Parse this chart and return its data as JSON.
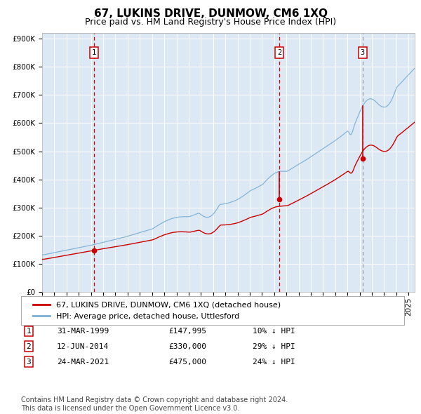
{
  "title": "67, LUKINS DRIVE, DUNMOW, CM6 1XQ",
  "subtitle": "Price paid vs. HM Land Registry's House Price Index (HPI)",
  "ylabel_ticks": [
    "£0",
    "£100K",
    "£200K",
    "£300K",
    "£400K",
    "£500K",
    "£600K",
    "£700K",
    "£800K",
    "£900K"
  ],
  "ytick_values": [
    0,
    100000,
    200000,
    300000,
    400000,
    500000,
    600000,
    700000,
    800000,
    900000
  ],
  "ylim": [
    0,
    920000
  ],
  "xlim_start": 1995.0,
  "xlim_end": 2025.5,
  "plot_bg_color": "#dce9f5",
  "hpi_line_color": "#7bafd4",
  "price_line_color": "#cc0000",
  "grid_color": "#ffffff",
  "sale_points": [
    {
      "date_num": 1999.25,
      "price": 147995,
      "label": "1"
    },
    {
      "date_num": 2014.44,
      "price": 330000,
      "label": "2"
    },
    {
      "date_num": 2021.23,
      "price": 475000,
      "label": "3"
    }
  ],
  "legend_entries": [
    {
      "color": "#cc0000",
      "label": "67, LUKINS DRIVE, DUNMOW, CM6 1XQ (detached house)"
    },
    {
      "color": "#7bafd4",
      "label": "HPI: Average price, detached house, Uttlesford"
    }
  ],
  "table_rows": [
    {
      "num": "1",
      "date": "31-MAR-1999",
      "price": "£147,995",
      "note": "10% ↓ HPI"
    },
    {
      "num": "2",
      "date": "12-JUN-2014",
      "price": "£330,000",
      "note": "29% ↓ HPI"
    },
    {
      "num": "3",
      "date": "24-MAR-2021",
      "price": "£475,000",
      "note": "24% ↓ HPI"
    }
  ],
  "footnote": "Contains HM Land Registry data © Crown copyright and database right 2024.\nThis data is licensed under the Open Government Licence v3.0.",
  "title_fontsize": 11,
  "subtitle_fontsize": 9,
  "tick_fontsize": 7.5,
  "legend_fontsize": 8,
  "table_fontsize": 8,
  "footnote_fontsize": 7
}
